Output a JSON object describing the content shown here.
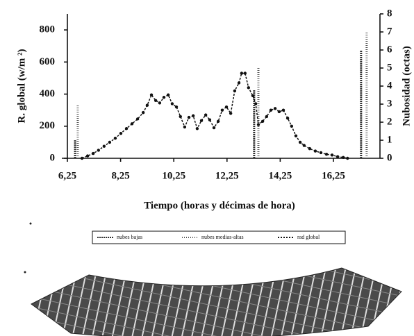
{
  "chart_data": {
    "type": "line",
    "ylabel": "R. global (w/m ²)",
    "y2label": "Nubosidad (octas)",
    "xlabel": "Tiempo (horas y décimas de hora)",
    "xlim": [
      6.25,
      18.0
    ],
    "xticks": [
      {
        "value": 6.25,
        "label": "6,25"
      },
      {
        "value": 8.25,
        "label": "8,25"
      },
      {
        "value": 10.25,
        "label": "10,25"
      },
      {
        "value": 12.25,
        "label": "12,25"
      },
      {
        "value": 14.25,
        "label": "14,25"
      },
      {
        "value": 16.25,
        "label": "16,25"
      }
    ],
    "ylim": [
      0,
      900
    ],
    "yticks": [
      0,
      200,
      400,
      600,
      800
    ],
    "y2lim": [
      0,
      8
    ],
    "y2ticks": [
      0,
      1,
      2,
      3,
      4,
      5,
      6,
      7,
      8
    ],
    "series": [
      {
        "name": "nubes bajas",
        "type": "bar",
        "axis": "y2",
        "color": "#333333",
        "dash": "2 1",
        "x": [
          6.54,
          13.27,
          17.29
        ],
        "values": [
          1,
          3.8,
          6
        ]
      },
      {
        "name": "nubes medias-altas",
        "type": "bar",
        "axis": "y2",
        "color": "#555555",
        "dash": "1 2",
        "x": [
          6.64,
          13.43,
          17.5
        ],
        "values": [
          3,
          5,
          7
        ]
      },
      {
        "name": "rad global",
        "type": "line",
        "color": "#111111",
        "x": [
          6.8,
          7.01,
          7.22,
          7.42,
          7.63,
          7.84,
          8.05,
          8.26,
          8.47,
          8.68,
          8.89,
          9.1,
          9.25,
          9.41,
          9.57,
          9.72,
          9.88,
          10.04,
          10.19,
          10.35,
          10.5,
          10.66,
          10.82,
          10.98,
          11.13,
          11.29,
          11.45,
          11.6,
          11.76,
          11.92,
          12.07,
          12.23,
          12.39,
          12.54,
          12.7,
          12.8,
          12.93,
          13.06,
          13.22,
          13.33,
          13.43,
          13.59,
          13.74,
          13.9,
          14.06,
          14.21,
          14.37,
          14.53,
          14.68,
          14.84,
          15.0,
          15.15,
          15.36,
          15.57,
          15.78,
          15.99,
          16.2,
          16.41,
          16.62,
          16.78
        ],
        "values": [
          0,
          15,
          30,
          50,
          75,
          100,
          125,
          155,
          185,
          215,
          245,
          285,
          330,
          395,
          360,
          345,
          380,
          395,
          340,
          320,
          260,
          195,
          255,
          265,
          185,
          235,
          270,
          240,
          190,
          230,
          300,
          320,
          280,
          420,
          470,
          530,
          530,
          440,
          390,
          340,
          210,
          230,
          260,
          300,
          310,
          290,
          300,
          250,
          200,
          140,
          100,
          80,
          60,
          45,
          35,
          25,
          20,
          10,
          5,
          0
        ]
      }
    ]
  }
}
